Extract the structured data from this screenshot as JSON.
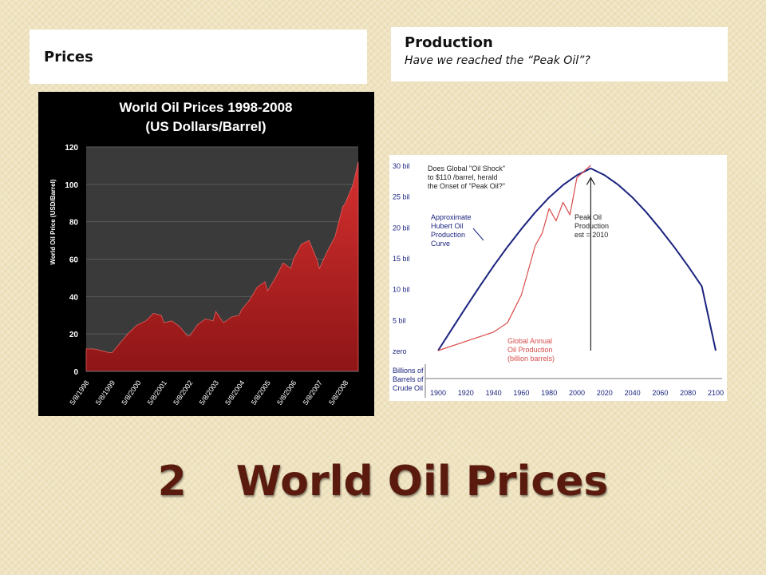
{
  "boxes": {
    "prices_label": "Prices",
    "production_label": "Production",
    "production_sub": "Have we reached the “Peak Oil”?"
  },
  "slide_title": {
    "number": "2",
    "text": "World Oil Prices",
    "color": "#5a1b0e"
  },
  "chart_data": [
    {
      "type": "area",
      "title": "World Oil Prices 1998-2008",
      "subtitle": "(US Dollars/Barrel)",
      "ylabel": "World Oil Price (USD/Barrel)",
      "xlabel": "",
      "ylim": [
        0,
        120
      ],
      "yticks": [
        0,
        20,
        40,
        60,
        80,
        100,
        120
      ],
      "xticks": [
        "5/8/1998",
        "5/8/1999",
        "5/8/2000",
        "5/8/2001",
        "5/8/2002",
        "5/8/2003",
        "5/8/2004",
        "5/8/2005",
        "5/8/2006",
        "5/8/2007",
        "5/8/2008"
      ],
      "x": [
        1998.0,
        1998.3,
        1998.6,
        1998.9,
        1999.0,
        1999.3,
        1999.6,
        1999.9,
        2000.0,
        2000.3,
        2000.6,
        2000.9,
        2001.0,
        2001.3,
        2001.6,
        2001.9,
        2002.0,
        2002.3,
        2002.6,
        2002.9,
        2003.0,
        2003.3,
        2003.6,
        2003.9,
        2004.0,
        2004.3,
        2004.6,
        2004.9,
        2005.0,
        2005.3,
        2005.6,
        2005.9,
        2006.0,
        2006.3,
        2006.6,
        2006.9,
        2007.0,
        2007.3,
        2007.6,
        2007.9,
        2008.0,
        2008.3,
        2008.5
      ],
      "values": [
        12,
        12,
        11,
        10,
        10,
        15,
        20,
        24,
        25,
        27,
        31,
        30,
        26,
        27,
        24,
        19,
        19,
        25,
        28,
        27,
        32,
        26,
        29,
        30,
        33,
        38,
        45,
        48,
        43,
        50,
        58,
        55,
        60,
        68,
        70,
        60,
        55,
        64,
        72,
        88,
        90,
        100,
        112
      ],
      "series_color": "#c0282b",
      "plot_bg": "#3a3a3a",
      "grid": true
    },
    {
      "type": "line",
      "title": "",
      "annotation_main": [
        "Does Global \"Oil Shock\"",
        "to $110 /barrel, herald",
        "the Onset of \"Peak Oil?\""
      ],
      "annotation_curve": [
        "Approximate",
        "Hubert Oil",
        "Production",
        "Curve"
      ],
      "annotation_peak": [
        "Peak Oil",
        "Production",
        "est = 2010"
      ],
      "annotation_actual": [
        "Global Annual",
        "Oil Production",
        "(billion barrels)"
      ],
      "ylabel_lines": [
        "Billions of",
        "Barrels of",
        "Crude Oil"
      ],
      "yticks": [
        "zero",
        "5 bil",
        "10 bil",
        "15 bil",
        "20 bil",
        "25 bil",
        "30 bil"
      ],
      "xticks": [
        "1900",
        "1920",
        "1940",
        "1960",
        "1980",
        "2000",
        "2020",
        "2040",
        "2060",
        "2080",
        "2100"
      ],
      "xlim": [
        1900,
        2100
      ],
      "ylim": [
        0,
        30
      ],
      "series": [
        {
          "name": "Approximate Hubert Oil Production Curve",
          "color": "#1a237e",
          "x": [
            1900,
            1910,
            1920,
            1930,
            1940,
            1950,
            1960,
            1970,
            1980,
            1990,
            2000,
            2010,
            2020,
            2030,
            2040,
            2050,
            2060,
            2070,
            2080,
            2090,
            2100
          ],
          "values": [
            0,
            3.5,
            7.0,
            10.4,
            13.7,
            16.8,
            19.7,
            22.4,
            24.8,
            26.8,
            28.4,
            29.5,
            28.4,
            26.8,
            24.8,
            22.4,
            19.7,
            16.8,
            13.7,
            10.4,
            0
          ]
        },
        {
          "name": "Global Annual Oil Production (billion barrels)",
          "color": "#d94a4a",
          "x": [
            1900,
            1920,
            1940,
            1950,
            1960,
            1970,
            1975,
            1980,
            1985,
            1990,
            1995,
            2000,
            2005,
            2010
          ],
          "values": [
            0,
            1.5,
            3.0,
            4.5,
            9.0,
            17,
            19,
            23,
            21,
            24,
            22,
            28,
            29,
            30
          ]
        }
      ]
    }
  ]
}
